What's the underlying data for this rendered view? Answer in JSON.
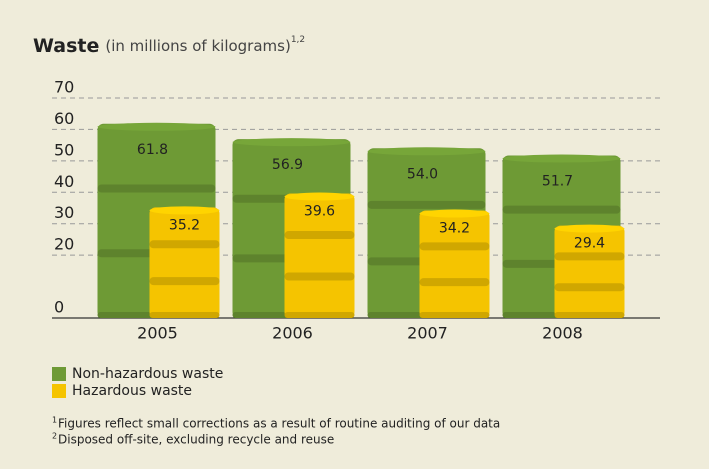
{
  "chart_data": {
    "type": "bar",
    "title": "Waste",
    "subtitle": "(in millions of kilograms)",
    "title_note": "1,2",
    "categories": [
      "2005",
      "2006",
      "2007",
      "2008"
    ],
    "series": [
      {
        "name": "Non-hazardous waste",
        "color": "#6e9a35",
        "values": [
          61.8,
          56.9,
          54.0,
          51.7
        ],
        "value_labels": [
          "61.8",
          "56.9",
          "54.0",
          "51.7"
        ]
      },
      {
        "name": "Hazardous waste",
        "color": "#f5c400",
        "values": [
          35.2,
          39.6,
          34.2,
          29.4
        ],
        "value_labels": [
          "35.2",
          "39.6",
          "34.2",
          "29.4"
        ]
      }
    ],
    "ylim": [
      0,
      70
    ],
    "yticks": [
      0,
      20,
      30,
      40,
      50,
      60,
      70
    ],
    "grid": true,
    "footnotes": [
      {
        "marker": "1",
        "text": "Figures reflect small corrections as a result of routine auditing of our data"
      },
      {
        "marker": "2",
        "text": "Disposed off-site, excluding recycle and reuse"
      }
    ]
  }
}
